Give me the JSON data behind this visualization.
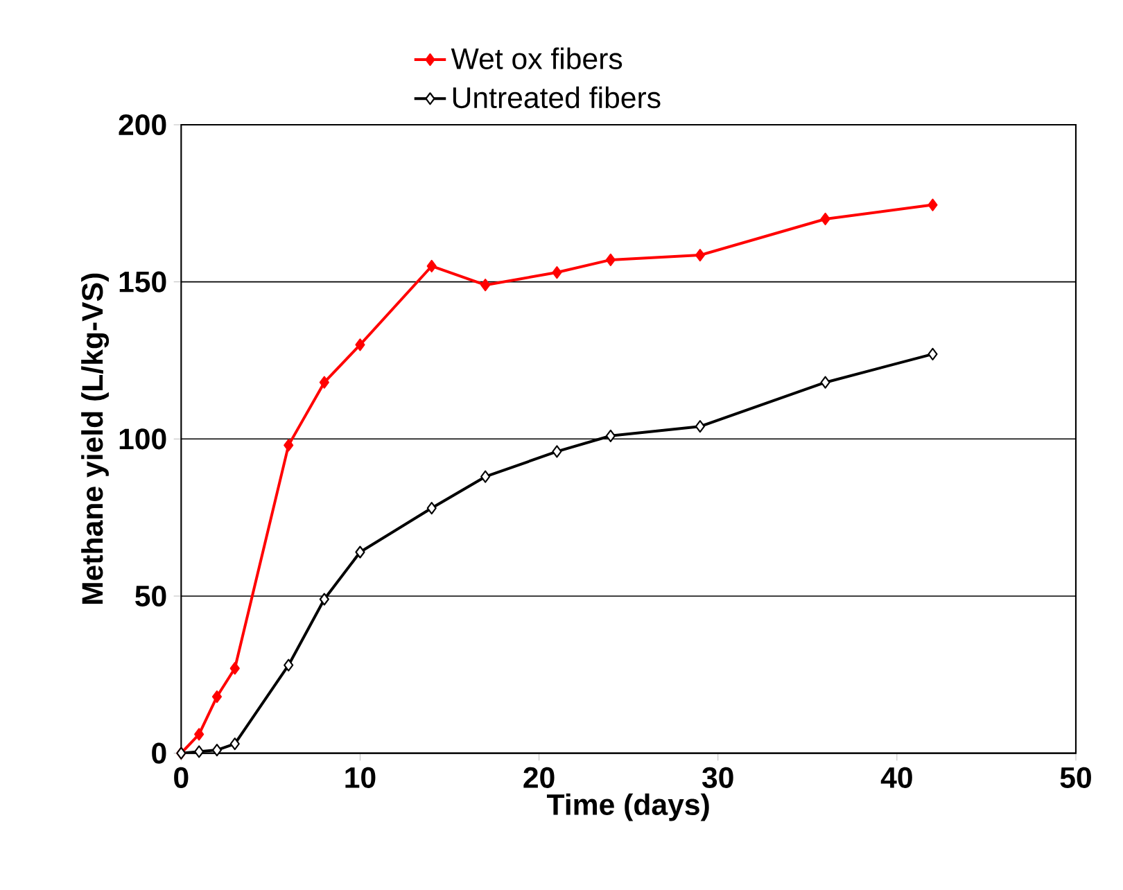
{
  "chart_data": {
    "type": "line",
    "xlabel": "Time (days)",
    "ylabel": "Methane yield (L/kg-VS)",
    "xlim": [
      0,
      50
    ],
    "xticks": [
      0,
      10,
      20,
      30,
      40,
      50
    ],
    "ylim": [
      0,
      200
    ],
    "yticks": [
      0,
      50,
      100,
      150,
      200
    ],
    "grid": "y",
    "legend": "top",
    "marker": "diamond",
    "line_style": "solid",
    "series": [
      {
        "name": "Wet ox fibers",
        "color": "#ff0000",
        "x": [
          0,
          1,
          2,
          3,
          6,
          8,
          10,
          14,
          17,
          21,
          24,
          29,
          36,
          42
        ],
        "values": [
          0,
          6,
          18,
          27,
          98,
          118,
          130,
          155,
          149,
          153,
          157,
          158.5,
          170,
          174.5
        ]
      },
      {
        "name": "Untreated fibers",
        "color": "#000000",
        "x": [
          0,
          1,
          2,
          3,
          6,
          8,
          10,
          14,
          17,
          21,
          24,
          29,
          36,
          42
        ],
        "values": [
          0,
          0.5,
          1,
          3,
          28,
          49,
          64,
          78,
          88,
          96,
          101,
          104,
          118,
          127
        ]
      }
    ]
  }
}
